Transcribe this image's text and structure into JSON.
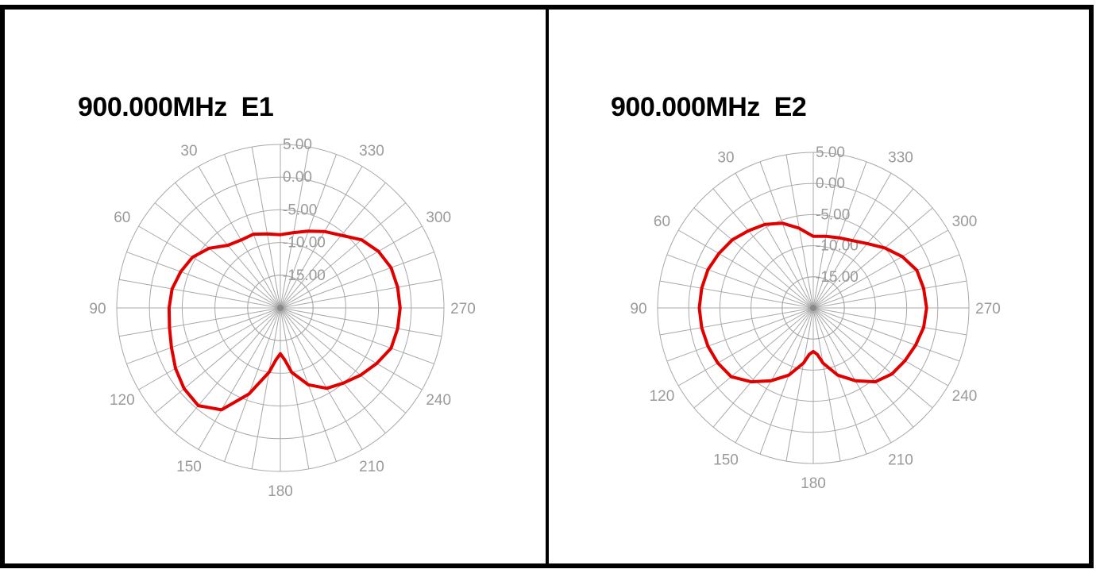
{
  "colors": {
    "trace": "#e00000",
    "grid": "#a8a8a8",
    "label": "#9a9a9a",
    "frame": "#000000"
  },
  "chart_data": [
    {
      "type": "polar-line",
      "title": "900.000MHz  E1",
      "radial_unit": "dB",
      "rlim": [
        -20,
        5
      ],
      "ring_values": [
        5,
        0,
        -5,
        -10,
        -15
      ],
      "ring_labels": [
        "5.00",
        "0.00",
        "-5.00",
        "-10.00",
        "-15.00"
      ],
      "angle_labels": [
        "30",
        "330",
        "60",
        "300",
        "90",
        "270",
        "120",
        "240",
        "150",
        "210",
        "180"
      ],
      "angle_direction": "counterclockwise",
      "zero_angle": "top",
      "theta": [
        0,
        10,
        20,
        30,
        40,
        50,
        60,
        70,
        80,
        90,
        100,
        110,
        120,
        130,
        140,
        150,
        160,
        170,
        175,
        180,
        185,
        190,
        200,
        210,
        220,
        230,
        240,
        250,
        260,
        270,
        280,
        290,
        300,
        310,
        320,
        330,
        340,
        350
      ],
      "values": [
        -8.8,
        -8.5,
        -8.0,
        -8.0,
        -7.5,
        -5.8,
        -4.5,
        -3.8,
        -3.2,
        -3.0,
        -2.8,
        -2.3,
        -1.5,
        -0.8,
        -0.5,
        -2.0,
        -6.0,
        -10.0,
        -12.0,
        -13.0,
        -12.0,
        -10.0,
        -7.5,
        -5.8,
        -5.0,
        -4.0,
        -3.0,
        -2.0,
        -1.8,
        -1.7,
        -1.8,
        -2.0,
        -2.7,
        -3.8,
        -5.5,
        -6.5,
        -7.5,
        -8.3
      ],
      "grid": true
    },
    {
      "type": "polar-line",
      "title": "900.000MHz  E2",
      "radial_unit": "dB",
      "rlim": [
        -20,
        5
      ],
      "ring_values": [
        5,
        0,
        -5,
        -10,
        -15
      ],
      "ring_labels": [
        "5.00",
        "0.00",
        "-5.00",
        "-10.00",
        "-15.00"
      ],
      "angle_labels": [
        "30",
        "330",
        "60",
        "300",
        "90",
        "270",
        "120",
        "240",
        "150",
        "210",
        "180"
      ],
      "angle_direction": "counterclockwise",
      "zero_angle": "top",
      "theta": [
        0,
        10,
        20,
        30,
        40,
        50,
        60,
        70,
        80,
        90,
        100,
        110,
        120,
        130,
        140,
        150,
        160,
        170,
        175,
        180,
        185,
        190,
        200,
        210,
        220,
        230,
        240,
        250,
        260,
        270,
        280,
        290,
        300,
        310,
        320,
        330,
        340,
        350
      ],
      "values": [
        -8.5,
        -7.0,
        -5.5,
        -4.5,
        -3.8,
        -3.0,
        -2.5,
        -2.0,
        -1.8,
        -1.7,
        -1.8,
        -2.0,
        -2.3,
        -2.8,
        -4.5,
        -6.5,
        -8.5,
        -11.0,
        -12.5,
        -13.0,
        -12.5,
        -11.0,
        -8.5,
        -6.5,
        -4.5,
        -3.5,
        -3.0,
        -2.5,
        -2.0,
        -1.8,
        -2.0,
        -2.3,
        -3.5,
        -5.0,
        -6.5,
        -7.5,
        -8.0,
        -8.3
      ],
      "grid": true
    }
  ]
}
